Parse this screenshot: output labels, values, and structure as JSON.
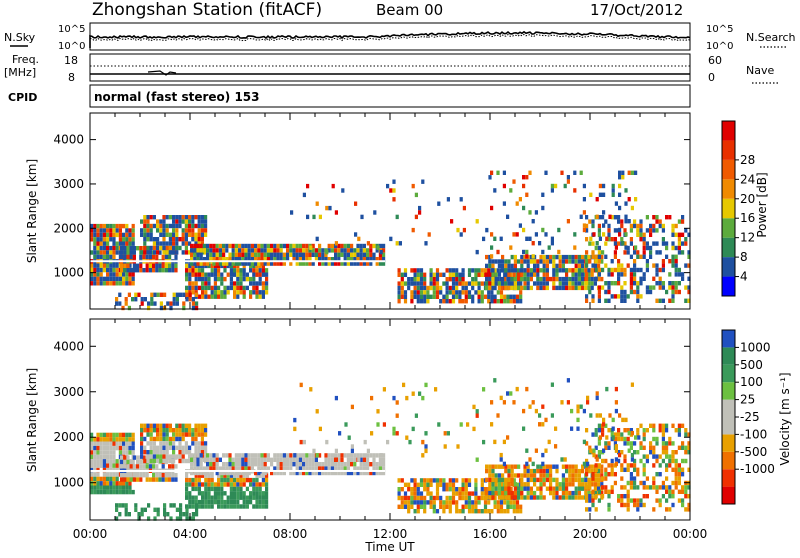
{
  "header": {
    "station": "Zhongshan Station (fitACF)",
    "beam": "Beam 00",
    "date": "17/Oct/2012"
  },
  "status_panel": {
    "nsky_label": "N.Sky",
    "nsky_ticks": [
      "10^5",
      "10^0"
    ],
    "nsearch_label": "N.Search",
    "nsearch_ticks": [
      "10^5",
      "10^0"
    ],
    "freq_label": "Freq.",
    "freq_unit": "[MHz]",
    "freq_ticks": [
      "18",
      "8"
    ],
    "nave_label": "Nave",
    "nave_ticks": [
      "60",
      "0"
    ],
    "cpid_label": "CPID",
    "cpid_text": "normal (fast stereo) 153"
  },
  "chart_data": [
    {
      "type": "heatmap",
      "id": "power",
      "xlabel": "",
      "ylabel": "Slant Range [km]",
      "yticks": [
        1000,
        2000,
        3000,
        4000
      ],
      "ylim": [
        180,
        4600
      ],
      "xlim": [
        0,
        24
      ],
      "colorbar": {
        "label": "Power [dB]",
        "ticks": [
          "4",
          "8",
          "12",
          "16",
          "20",
          "24",
          "28"
        ],
        "colors": [
          "#0000ff",
          "#1e50a0",
          "#2e8a56",
          "#5cab3c",
          "#e6c800",
          "#f08a00",
          "#f05a00",
          "#e83000",
          "#e00000"
        ]
      }
    },
    {
      "type": "heatmap",
      "id": "velocity",
      "xlabel": "Time UT",
      "ylabel": "Slant Range [km]",
      "yticks": [
        1000,
        2000,
        3000,
        4000
      ],
      "ylim": [
        180,
        4600
      ],
      "xlim": [
        0,
        24
      ],
      "xticks": [
        "00:00",
        "04:00",
        "08:00",
        "12:00",
        "16:00",
        "20:00",
        "00:00"
      ],
      "colorbar": {
        "label": "Velocity [m s⁻¹]",
        "ticks": [
          "1000",
          "500",
          "100",
          "25",
          "-25",
          "-100",
          "-500",
          "-1000"
        ],
        "colors": [
          "#2050c0",
          "#2e8a56",
          "#3a9a5a",
          "#6cc040",
          "#c0c0b8",
          "#c0c0b8",
          "#e8a000",
          "#f07000",
          "#f03000",
          "#e00000"
        ]
      }
    }
  ],
  "colors": {
    "ground_scatter": "#c0c0b8"
  }
}
